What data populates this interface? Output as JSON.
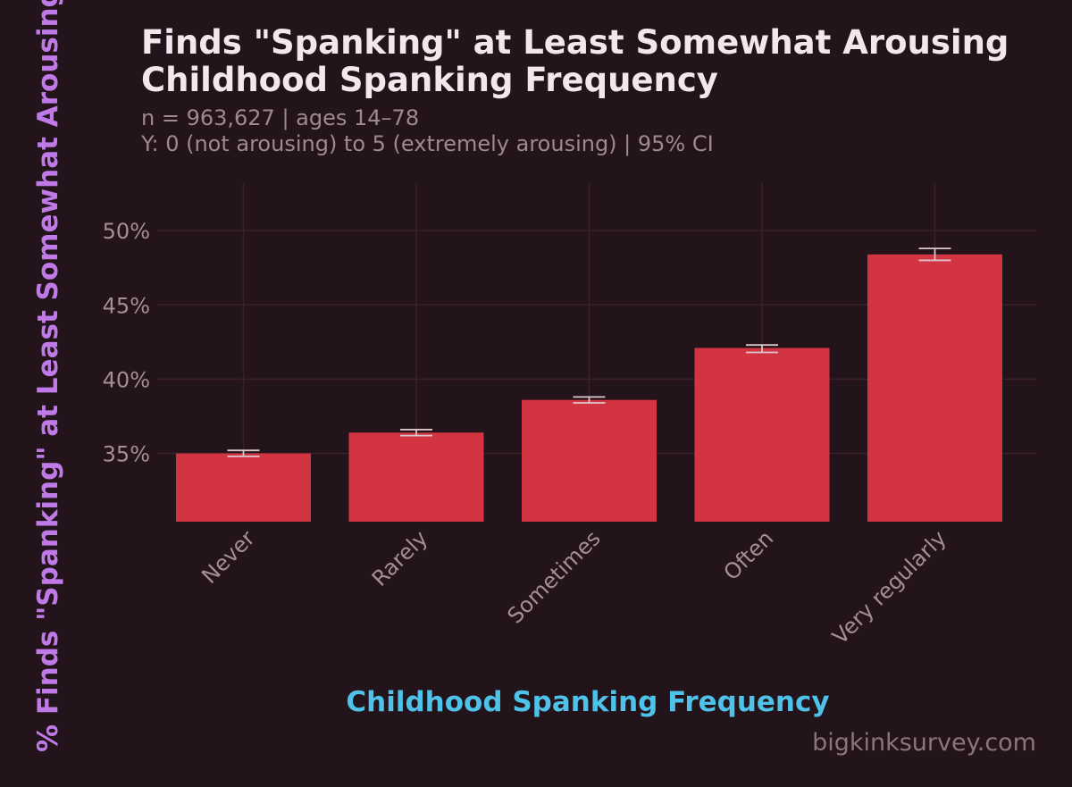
{
  "chart_data": {
    "type": "bar",
    "title_lines": [
      "Finds \"Spanking\" at Least Somewhat Arousing",
      "Childhood Spanking Frequency"
    ],
    "subtitle_lines": [
      "n = 963,627  |  ages 14–78",
      "Y: 0 (not arousing) to 5 (extremely arousing)  |  95% CI"
    ],
    "xlabel": "Childhood Spanking Frequency",
    "ylabel": "% Finds \"Spanking\" at Least Somewhat Arousing",
    "categories": [
      "Never",
      "Rarely",
      "Sometimes",
      "Often",
      "Very regularly"
    ],
    "values": [
      35.0,
      36.4,
      38.6,
      42.1,
      48.4
    ],
    "ci_low": [
      34.8,
      36.2,
      38.4,
      41.8,
      48.0
    ],
    "ci_high": [
      35.2,
      36.6,
      38.8,
      42.3,
      48.8
    ],
    "ylim": [
      30.4,
      53.2
    ],
    "yticks": [
      35,
      40,
      45,
      50
    ],
    "ytick_labels": [
      "35%",
      "40%",
      "45%",
      "50%"
    ],
    "grid": true,
    "watermark": "bigkinksurvey.com",
    "colors": {
      "background": "#23131a",
      "bar": "#d33442",
      "errorbar": "#dcc6cc",
      "grid": "#3c2029",
      "title": "#f3e6ec",
      "subtitle": "#a08890",
      "tick": "#a58c95",
      "xlabel": "#4fc2ea",
      "ylabel": "#c07ae8",
      "watermark": "#8c737c"
    }
  }
}
